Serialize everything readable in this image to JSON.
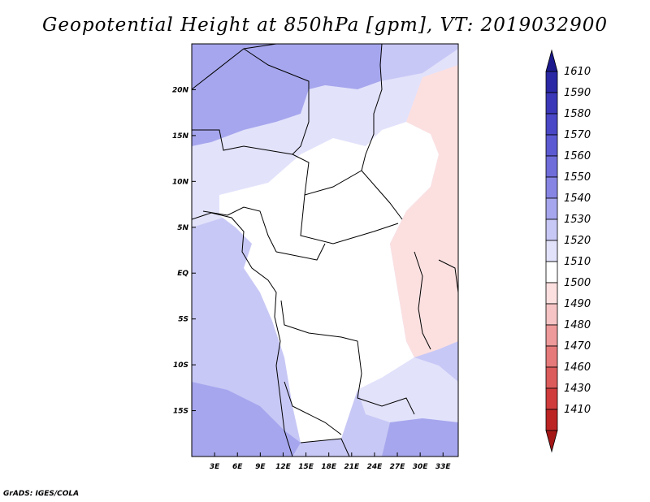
{
  "title": "Geopotential Height at 850hPa [gpm], VT: 2019032900",
  "credit": "GrADS: IGES/COLA",
  "map": {
    "lon_range": [
      0,
      35
    ],
    "lat_range": [
      -20,
      25
    ],
    "lat_ticks": [
      {
        "lat": 20,
        "label": "20N"
      },
      {
        "lat": 15,
        "label": "15N"
      },
      {
        "lat": 10,
        "label": "10N"
      },
      {
        "lat": 5,
        "label": "5N"
      },
      {
        "lat": 0,
        "label": "EQ"
      },
      {
        "lat": -5,
        "label": "5S"
      },
      {
        "lat": -10,
        "label": "10S"
      },
      {
        "lat": -15,
        "label": "15S"
      }
    ],
    "lon_ticks": [
      {
        "lon": 3,
        "label": "3E"
      },
      {
        "lon": 6,
        "label": "6E"
      },
      {
        "lon": 9,
        "label": "9E"
      },
      {
        "lon": 12,
        "label": "12E"
      },
      {
        "lon": 15,
        "label": "15E"
      },
      {
        "lon": 18,
        "label": "18E"
      },
      {
        "lon": 21,
        "label": "21E"
      },
      {
        "lon": 24,
        "label": "24E"
      },
      {
        "lon": 27,
        "label": "27E"
      },
      {
        "lon": 30,
        "label": "30E"
      },
      {
        "lon": 33,
        "label": "33E"
      }
    ]
  },
  "colorbar": {
    "levels": [
      {
        "label": "1610",
        "color": "#1c1a8c"
      },
      {
        "label": "1590",
        "color": "#2a28a4"
      },
      {
        "label": "1580",
        "color": "#3a38b8"
      },
      {
        "label": "1570",
        "color": "#4a48c6"
      },
      {
        "label": "1560",
        "color": "#5c5ad2"
      },
      {
        "label": "1550",
        "color": "#6f6dda"
      },
      {
        "label": "1540",
        "color": "#8785e4"
      },
      {
        "label": "1530",
        "color": "#a6a6ee"
      },
      {
        "label": "1520",
        "color": "#c8c8f6"
      },
      {
        "label": "1510",
        "color": "#e2e2fb"
      },
      {
        "label": "1500",
        "color": "#ffffff"
      },
      {
        "label": "1490",
        "color": "#fce0e0"
      },
      {
        "label": "1480",
        "color": "#f6c4c4"
      },
      {
        "label": "1470",
        "color": "#ee9a9a"
      },
      {
        "label": "1460",
        "color": "#e67a7a"
      },
      {
        "label": "1430",
        "color": "#dc5c5c"
      },
      {
        "label": "1410",
        "color": "#d03c3c"
      },
      {
        "label": "",
        "color": "#bc2424"
      },
      {
        "label": "",
        "color": "#a41616"
      }
    ]
  },
  "field_colors": {
    "deep": "#a6a6ee",
    "medium": "#c8c8f6",
    "light": "#e2e2fb",
    "neutral": "#ffffff",
    "pink": "#fce0e0"
  }
}
